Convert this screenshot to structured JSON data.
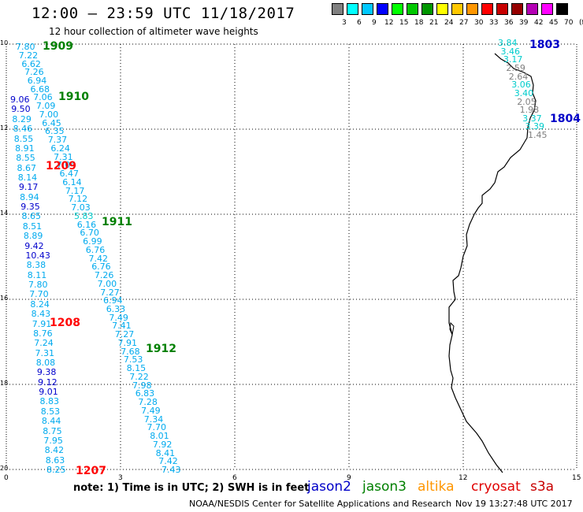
{
  "header": {
    "title": "12:00 – 23:59 UTC 11/18/2017",
    "subtitle": "12 hour collection of altimeter wave heights"
  },
  "legend": {
    "colors": [
      "#808080",
      "#00ffff",
      "#00c8ff",
      "#0000ff",
      "#00ff00",
      "#00c800",
      "#009600",
      "#ffff00",
      "#ffc800",
      "#ff9600",
      "#ff0000",
      "#c80000",
      "#960000",
      "#b400b4",
      "#ff00ff",
      "#000000"
    ],
    "labels": [
      "3",
      "6",
      "9",
      "12",
      "15",
      "18",
      "21",
      "24",
      "27",
      "30",
      "33",
      "36",
      "39",
      "42",
      "45",
      "70",
      "(ft)"
    ]
  },
  "axes": {
    "x_ticks": [
      "0",
      "3",
      "6",
      "9",
      "12",
      "15"
    ],
    "y_ticks": [
      "10",
      "12",
      "14",
      "16",
      "18",
      "20"
    ]
  },
  "satellites": [
    {
      "label": "1909",
      "color": "#008000"
    },
    {
      "label": "1910",
      "color": "#008000"
    },
    {
      "label": "1911",
      "color": "#008000"
    },
    {
      "label": "1912",
      "color": "#008000"
    },
    {
      "label": "1209",
      "color": "#ff0000"
    },
    {
      "label": "1208",
      "color": "#ff0000"
    },
    {
      "label": "1207",
      "color": "#ff0000"
    },
    {
      "label": "1803",
      "color": "#0000c8"
    },
    {
      "label": "1804",
      "color": "#0000c8"
    }
  ],
  "tracks": {
    "track_1909": [
      "7.80",
      "7.22",
      "6.62",
      "7.26",
      "6.94",
      "6.68",
      "7.06",
      "7.09",
      "7.00",
      "6.45",
      "6.35",
      "7.37",
      "6.24",
      "7.31",
      "7.04",
      "6.47",
      "6.14",
      "7.17",
      "7.12",
      "7.03",
      "5.83",
      "6.16",
      "6.70",
      "6.99",
      "6.76",
      "7.42",
      "6.76",
      "7.26",
      "7.00",
      "7.27",
      "6.94",
      "6.33",
      "7.49",
      "7.41",
      "7.27",
      "7.91",
      "7.68",
      "7.53",
      "8.15",
      "7.22",
      "7.98",
      "6.83",
      "7.28",
      "7.49",
      "7.34",
      "7.70",
      "8.01",
      "7.92",
      "8.41",
      "7.42",
      "7.43"
    ],
    "track_1208": [
      "9.06",
      "9.50",
      "8.29",
      "8.46",
      "8.55",
      "8.91",
      "8.55",
      "8.67",
      "8.14",
      "9.17",
      "8.94",
      "9.35",
      "8.65",
      "8.51",
      "8.89",
      "9.42",
      "10.43",
      "8.38",
      "8.11",
      "7.80",
      "7.70",
      "8.24",
      "8.43",
      "7.91",
      "8.76",
      "7.24",
      "7.31",
      "8.08",
      "9.38",
      "9.12",
      "9.01",
      "8.83",
      "8.53",
      "8.44",
      "8.75",
      "7.95",
      "8.42",
      "8.63",
      "8.25"
    ],
    "track_1803": [
      "3.84",
      "3.46",
      "3.17",
      "2.59",
      "2.64",
      "3.06",
      "3.40",
      "2.05",
      "1.98",
      "3.37",
      "3.39",
      "1.45"
    ]
  },
  "footer": {
    "note": "note:  1) Time is in UTC;  2) SWH is in feet",
    "missions": [
      {
        "label": "jason2",
        "color": "#0000c8"
      },
      {
        "label": "jason3",
        "color": "#008000"
      },
      {
        "label": "altika",
        "color": "#ff9600"
      },
      {
        "label": "cryosat",
        "color": "#e00000"
      },
      {
        "label": "s3a",
        "color": "#c80000"
      }
    ],
    "credit": "NOAA/NESDIS Center for Satellite Applications and Research",
    "timestamp": "Nov 19 13:27:48 UTC 2017"
  }
}
